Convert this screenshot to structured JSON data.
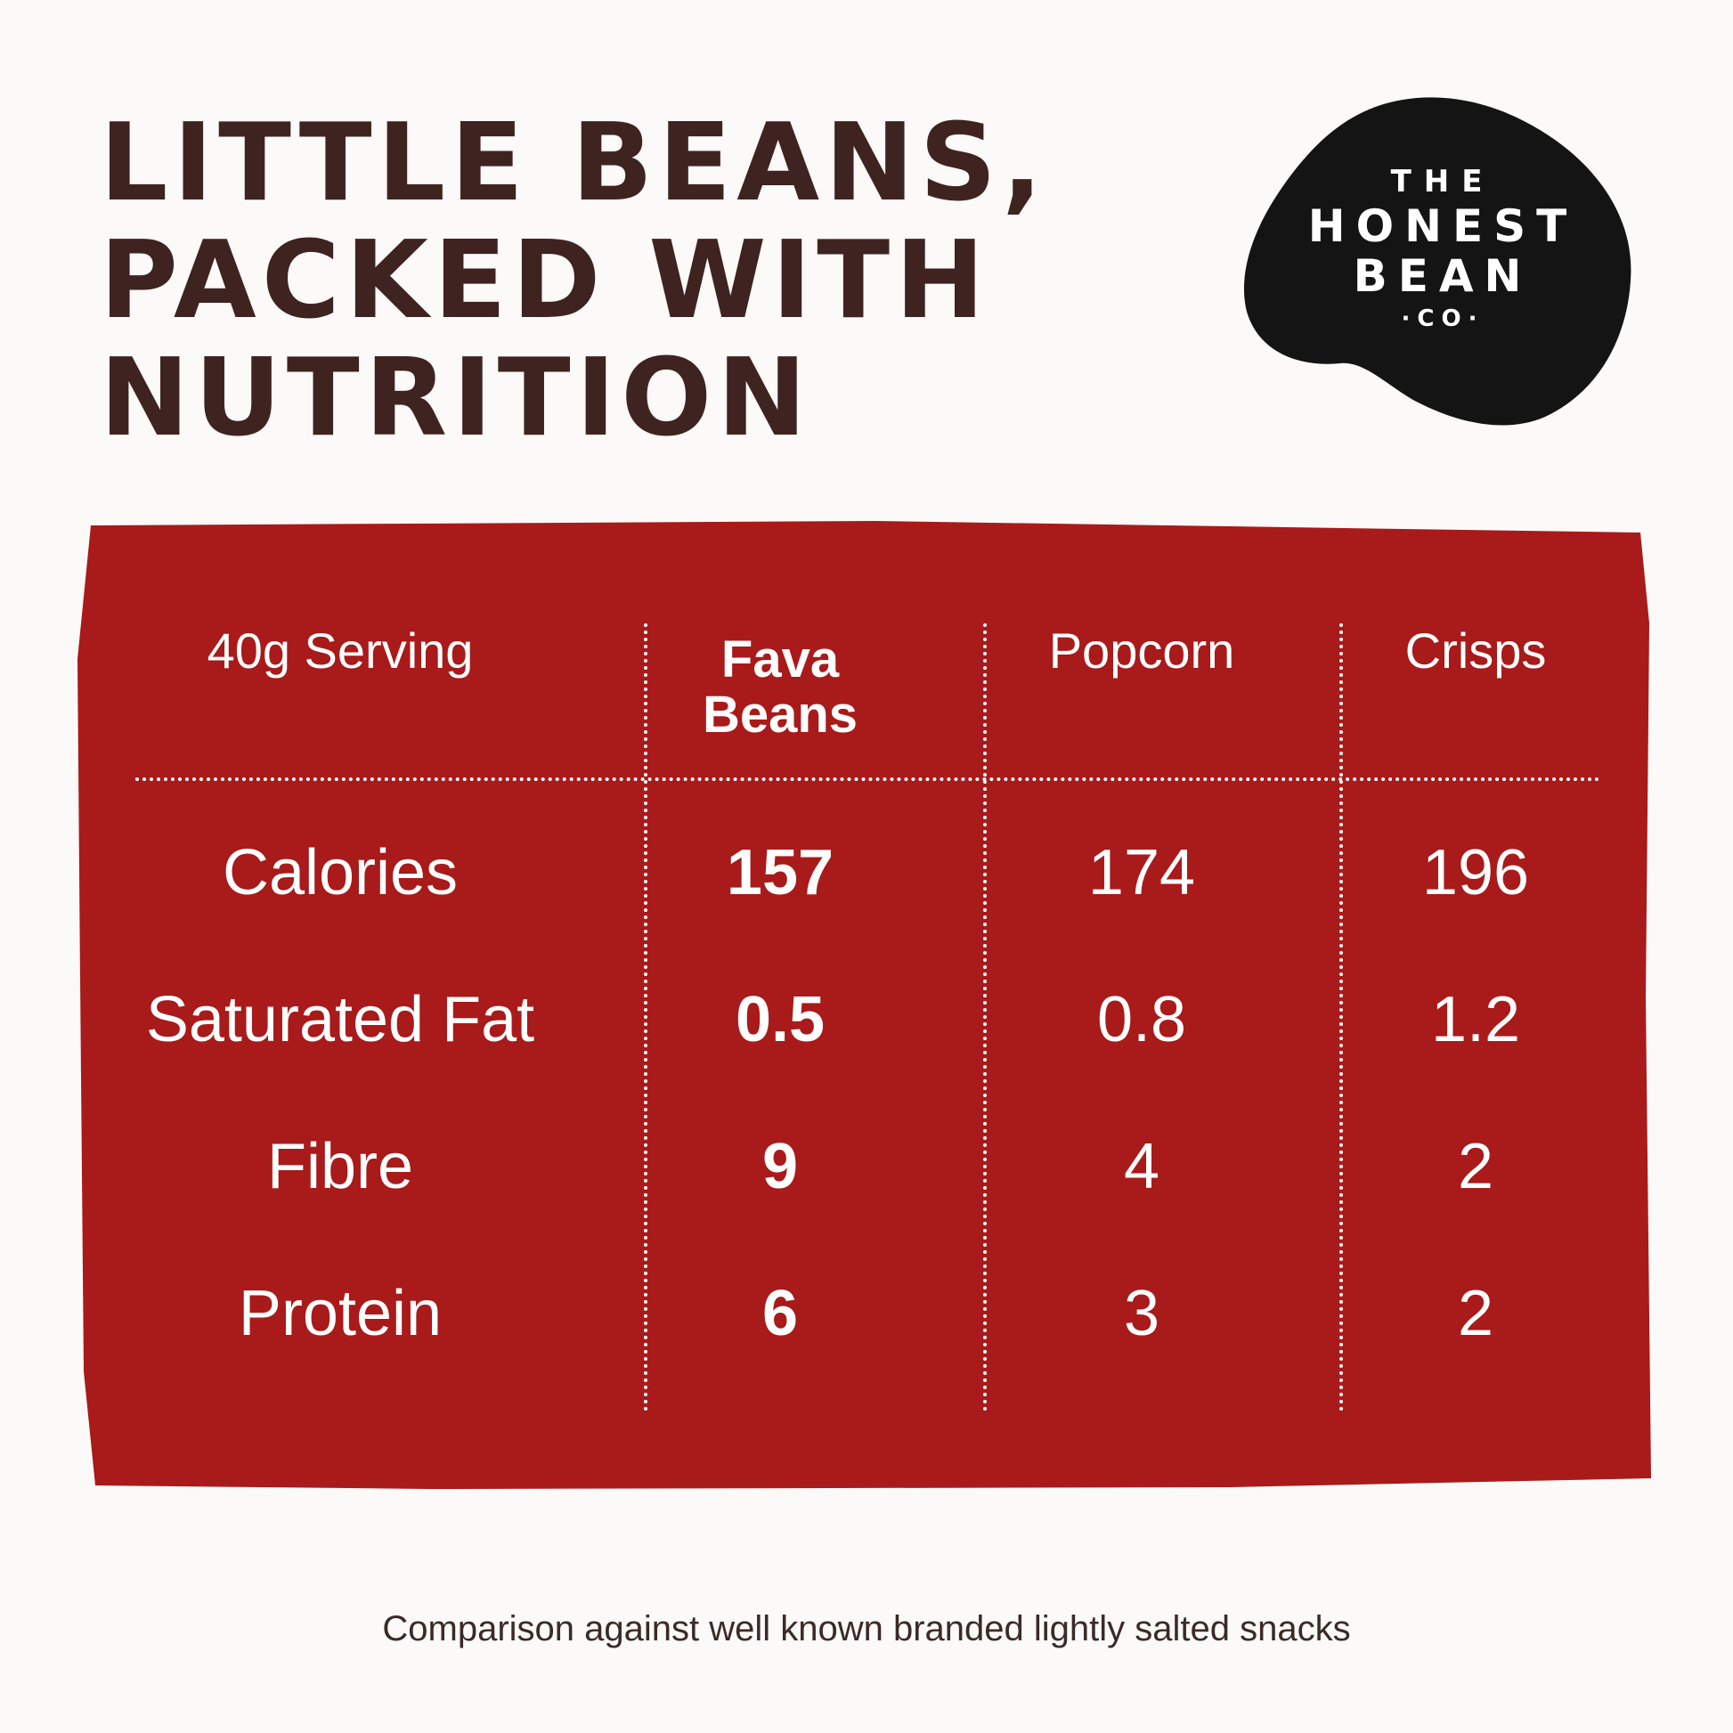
{
  "headline": {
    "line1": "Little Beans,",
    "line2": "Packed With",
    "line3": "Nutrition"
  },
  "logo": {
    "the": "THE",
    "honest": "HONEST",
    "bean": "BEAN",
    "co": "·CO·"
  },
  "colors": {
    "background": "#fbfaf8",
    "headline": "#3f2320",
    "panel": "#a91a1a",
    "logo": "#141414"
  },
  "table": {
    "headers": [
      "40g Serving",
      "Fava Beans",
      "Popcorn",
      "Crisps"
    ],
    "rows": [
      {
        "label": "Calories",
        "fava": "157",
        "popcorn": "174",
        "crisps": "196"
      },
      {
        "label": "Saturated Fat",
        "fava": "0.5",
        "popcorn": "0.8",
        "crisps": "1.2"
      },
      {
        "label": "Fibre",
        "fava": "9",
        "popcorn": "4",
        "crisps": "2"
      },
      {
        "label": "Protein",
        "fava": "6",
        "popcorn": "3",
        "crisps": "2"
      }
    ]
  },
  "footnote": "Comparison against well known branded lightly salted snacks"
}
